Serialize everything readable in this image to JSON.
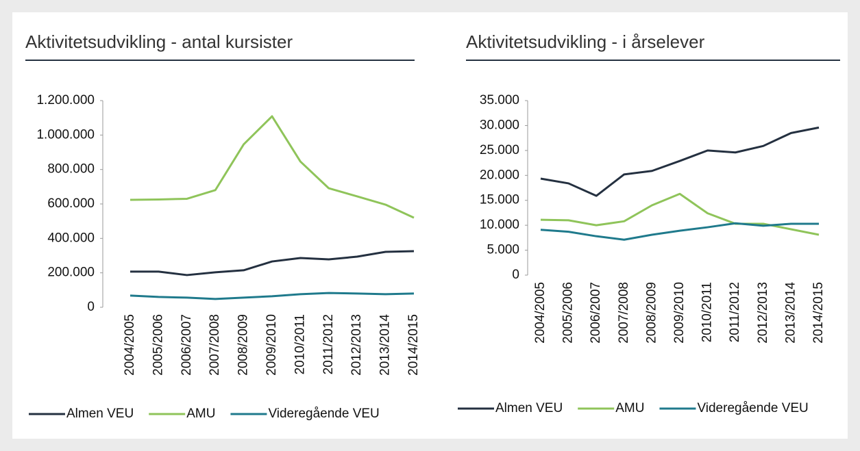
{
  "chart_data": [
    {
      "type": "line",
      "title": "Aktivitetsudvikling - antal kursister",
      "categories": [
        "2004/2005",
        "2005/2006",
        "2006/2007",
        "2007/2008",
        "2008/2009",
        "2009/2010",
        "2010/2011",
        "2011/2012",
        "2012/2013",
        "2013/2014",
        "2014/2015"
      ],
      "series": [
        {
          "name": "Almen VEU",
          "color": "#243040",
          "values": [
            207000,
            207000,
            187000,
            203000,
            215000,
            266000,
            286000,
            278000,
            294000,
            322000,
            326000
          ]
        },
        {
          "name": "AMU",
          "color": "#8fc45a",
          "values": [
            624000,
            626000,
            630000,
            680000,
            946000,
            1109000,
            846000,
            691000,
            644000,
            596000,
            520000
          ]
        },
        {
          "name": "Videregående VEU",
          "color": "#1f7a8c",
          "values": [
            68000,
            60000,
            56000,
            48000,
            56000,
            64000,
            76000,
            83000,
            80000,
            76000,
            80000
          ]
        }
      ],
      "ylim": [
        0,
        1200000
      ],
      "yticks": [
        0,
        {
          "value": 200000,
          "label": "200.000"
        },
        {
          "value": 400000,
          "label": "400.000"
        },
        {
          "value": 600000,
          "label": "600.000"
        },
        {
          "value": 800000,
          "label": "800.000"
        },
        {
          "value": 1000000,
          "label": "1.000.000"
        },
        {
          "value": 1200000,
          "label": "1.200.000"
        }
      ],
      "legend": "bottom"
    },
    {
      "type": "line",
      "title": "Aktivitetsudvikling - i årselever",
      "categories": [
        "2004/2005",
        "2005/2006",
        "2006/2007",
        "2007/2008",
        "2008/2009",
        "2009/2010",
        "2010/2011",
        "2011/2012",
        "2012/2013",
        "2013/2014",
        "2014/2015"
      ],
      "series": [
        {
          "name": "Almen VEU",
          "color": "#243040",
          "values": [
            19350,
            18400,
            15900,
            20200,
            20900,
            22900,
            25000,
            24600,
            25900,
            28500,
            29600
          ]
        },
        {
          "name": "AMU",
          "color": "#8fc45a",
          "values": [
            11100,
            11000,
            10000,
            10800,
            14000,
            16300,
            12400,
            10300,
            10300,
            9200,
            8100
          ]
        },
        {
          "name": "Videregående VEU",
          "color": "#1f7a8c",
          "values": [
            9100,
            8700,
            7800,
            7100,
            8100,
            8900,
            9600,
            10400,
            9900,
            10300,
            10300
          ]
        }
      ],
      "ylim": [
        0,
        35000
      ],
      "yticks": [
        0,
        {
          "value": 5000,
          "label": "5.000"
        },
        {
          "value": 10000,
          "label": "10.000"
        },
        {
          "value": 15000,
          "label": "15.000"
        },
        {
          "value": 20000,
          "label": "20.000"
        },
        {
          "value": 25000,
          "label": "25.000"
        },
        {
          "value": 30000,
          "label": "30.000"
        },
        {
          "value": 35000,
          "label": "35.000"
        }
      ],
      "legend": "bottom"
    }
  ]
}
